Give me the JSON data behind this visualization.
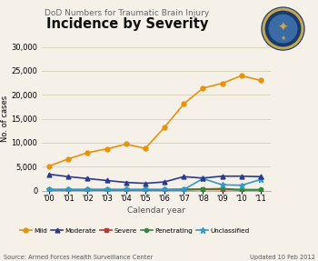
{
  "title_top": "DoD Numbers for Traumatic Brain Injury",
  "title_bold": "Incidence by Severity",
  "ylabel": "No. of cases",
  "xlabel": "Calendar year",
  "source_text": "Source: Armed Forces Health Surveillance Center",
  "update_text": "Updated 10 Feb 2012",
  "years": [
    2000,
    2001,
    2002,
    2003,
    2004,
    2005,
    2006,
    2007,
    2008,
    2009,
    2010,
    2011
  ],
  "year_labels": [
    "'00",
    "'01",
    "'02",
    "'03",
    "'04",
    "'05",
    "'06",
    "'07",
    "'08",
    "'09",
    "'10",
    "'11"
  ],
  "mild": [
    5100,
    6600,
    7900,
    8700,
    9700,
    8800,
    13200,
    18100,
    21400,
    22400,
    24000,
    23000
  ],
  "moderate": [
    3400,
    2900,
    2500,
    2100,
    1700,
    1500,
    1800,
    2900,
    2600,
    3000,
    3000,
    2900
  ],
  "severe": [
    100,
    100,
    100,
    100,
    100,
    100,
    100,
    100,
    200,
    200,
    100,
    100
  ],
  "penetrating": [
    200,
    200,
    200,
    200,
    200,
    200,
    200,
    300,
    300,
    400,
    200,
    200
  ],
  "unclassified": [
    200,
    200,
    200,
    200,
    200,
    200,
    200,
    200,
    2500,
    1200,
    1100,
    2300
  ],
  "color_mild": "#E8920A",
  "color_moderate": "#2B3A8F",
  "color_severe": "#C0392B",
  "color_penetrating": "#2E8B3A",
  "color_unclassified": "#3399CC",
  "bg_color": "#F5F0E8",
  "ylim": [
    0,
    30000
  ],
  "yticks": [
    0,
    5000,
    10000,
    15000,
    20000,
    25000,
    30000
  ]
}
